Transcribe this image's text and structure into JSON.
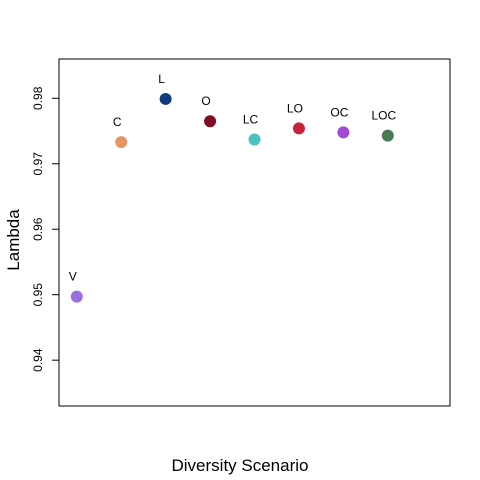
{
  "chart_data": {
    "type": "scatter",
    "title": "",
    "xlabel": "Diversity Scenario",
    "ylabel": "Lambda",
    "xlim": [
      0.6,
      9.4
    ],
    "ylim": [
      0.933,
      0.986
    ],
    "yticks": [
      0.94,
      0.95,
      0.96,
      0.97,
      0.98
    ],
    "ytick_labels": [
      "0.94",
      "0.95",
      "0.96",
      "0.97",
      "0.98"
    ],
    "grid": false,
    "legend": "none",
    "points": [
      {
        "label": "V",
        "x": 1,
        "y": 0.9497,
        "color": "#9c6fe0"
      },
      {
        "label": "C",
        "x": 2,
        "y": 0.9733,
        "color": "#e69563"
      },
      {
        "label": "L",
        "x": 3,
        "y": 0.9799,
        "color": "#0f3a80"
      },
      {
        "label": "O",
        "x": 4,
        "y": 0.9765,
        "color": "#820c24"
      },
      {
        "label": "LC",
        "x": 5,
        "y": 0.9737,
        "color": "#4dc0c0"
      },
      {
        "label": "LO",
        "x": 6,
        "y": 0.9754,
        "color": "#c8213b"
      },
      {
        "label": "OC",
        "x": 7,
        "y": 0.9748,
        "color": "#a24ad2"
      },
      {
        "label": "LOC",
        "x": 8,
        "y": 0.9743,
        "color": "#487b51"
      }
    ]
  }
}
